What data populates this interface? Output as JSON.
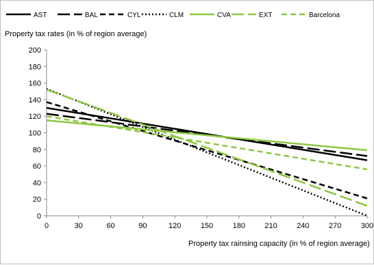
{
  "chart_data": {
    "type": "line",
    "title": "",
    "ylabel": "Property tax rates (in % of region average)",
    "xlabel": "Property tax rainsing capacity  (in % of region average)",
    "xlim": [
      0,
      300
    ],
    "ylim": [
      0,
      200
    ],
    "x_ticks": [
      0,
      30,
      60,
      90,
      120,
      150,
      180,
      210,
      240,
      270,
      300
    ],
    "y_ticks": [
      0,
      20,
      40,
      60,
      80,
      100,
      120,
      140,
      160,
      180,
      200
    ],
    "grid": false,
    "legend_position": "top",
    "x": [
      0,
      300
    ],
    "series": [
      {
        "name": "AST",
        "values": [
          130,
          67
        ],
        "color": "#000000",
        "dash": "solid"
      },
      {
        "name": "BAL",
        "values": [
          123,
          72
        ],
        "color": "#000000",
        "dash": "long-dash"
      },
      {
        "name": "CYL",
        "values": [
          137,
          21
        ],
        "color": "#000000",
        "dash": "dash"
      },
      {
        "name": "CLM",
        "values": [
          153,
          0
        ],
        "color": "#000000",
        "dash": "dot"
      },
      {
        "name": "CVA",
        "values": [
          115,
          79
        ],
        "color": "#8dc63f",
        "dash": "solid"
      },
      {
        "name": "EXT",
        "values": [
          152,
          12
        ],
        "color": "#8dc63f",
        "dash": "long-dash"
      },
      {
        "name": "Barcelona",
        "values": [
          120,
          56
        ],
        "color": "#8dc63f",
        "dash": "dash"
      }
    ]
  }
}
